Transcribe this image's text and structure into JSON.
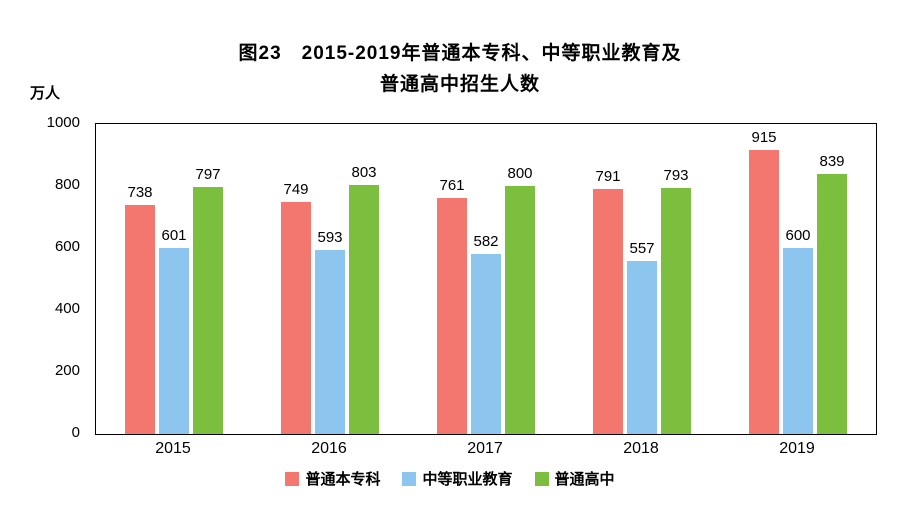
{
  "title": {
    "line1": "图23　2015-2019年普通本专科、中等职业教育及",
    "line2": "普通高中招生人数"
  },
  "y_axis_unit": "万人",
  "chart_data": {
    "type": "bar",
    "title": "图23 2015-2019年普通本专科、中等职业教育及普通高中招生人数",
    "ylabel": "万人",
    "xlabel": "",
    "categories": [
      "2015",
      "2016",
      "2017",
      "2018",
      "2019"
    ],
    "series": [
      {
        "name": "普通本专科",
        "color": "#F4776F",
        "values": [
          738,
          749,
          761,
          791,
          915
        ]
      },
      {
        "name": "中等职业教育",
        "color": "#8CC5EE",
        "values": [
          601,
          593,
          582,
          557,
          600
        ]
      },
      {
        "name": "普通高中",
        "color": "#7CBF3F",
        "values": [
          797,
          803,
          800,
          793,
          839
        ]
      }
    ],
    "ylim": [
      0,
      1000
    ],
    "yticks": [
      0,
      200,
      400,
      600,
      800,
      1000
    ],
    "grid": false,
    "data_labels": true,
    "legend_position": "bottom"
  }
}
